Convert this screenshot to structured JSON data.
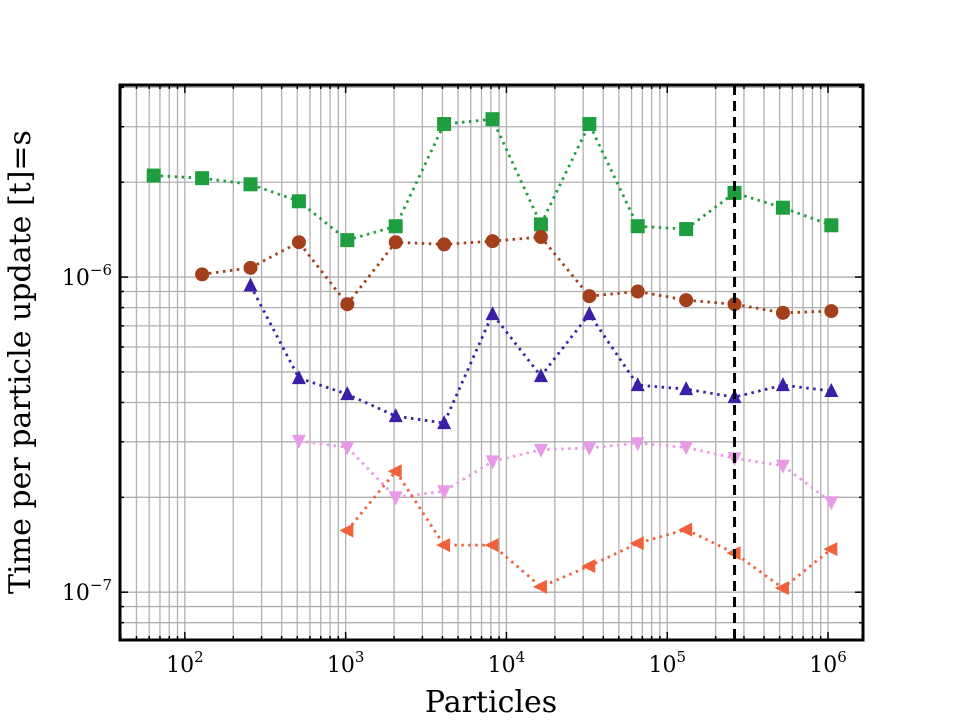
{
  "chart_data": {
    "type": "line",
    "title": "",
    "xlabel": "Particles",
    "ylabel": "Time per particle update [t]=s",
    "xscale": "log",
    "yscale": "log",
    "xlim": [
      39.5,
      1650000
    ],
    "ylim": [
      7.05e-08,
      4.07e-06
    ],
    "grid": true,
    "x_ticks": [
      {
        "value": 100,
        "base": "10",
        "exp": "2"
      },
      {
        "value": 1000,
        "base": "10",
        "exp": "3"
      },
      {
        "value": 10000,
        "base": "10",
        "exp": "4"
      },
      {
        "value": 100000,
        "base": "10",
        "exp": "5"
      },
      {
        "value": 1000000,
        "base": "10",
        "exp": "6"
      }
    ],
    "y_ticks": [
      {
        "value": 1e-06,
        "base": "10",
        "exp": "−6"
      },
      {
        "value": 1e-07,
        "base": "10",
        "exp": "−7"
      }
    ],
    "vline": 262144,
    "series": [
      {
        "name": "green-squares",
        "color": "#1f9e3f",
        "marker": "square",
        "x": [
          64,
          128,
          256,
          512,
          1024,
          2048,
          4096,
          8192,
          16384,
          32768,
          65536,
          131072,
          262144,
          524288,
          1048576
        ],
        "y": [
          2.1e-06,
          2.06e-06,
          1.97e-06,
          1.74e-06,
          1.31e-06,
          1.45e-06,
          3.06e-06,
          3.17e-06,
          1.47e-06,
          3.06e-06,
          1.45e-06,
          1.42e-06,
          1.85e-06,
          1.66e-06,
          1.46e-06
        ]
      },
      {
        "name": "brown-circles",
        "color": "#a3401c",
        "marker": "circle",
        "x": [
          128,
          256,
          512,
          1024,
          2048,
          4096,
          8192,
          16384,
          32768,
          65536,
          131072,
          262144,
          524288,
          1048576
        ],
        "y": [
          1.02e-06,
          1.07e-06,
          1.29e-06,
          8.2e-07,
          1.29e-06,
          1.27e-06,
          1.3e-06,
          1.34e-06,
          8.7e-07,
          9e-07,
          8.45e-07,
          8.2e-07,
          7.7e-07,
          7.8e-07
        ]
      },
      {
        "name": "blue-triangles-up",
        "color": "#3b1fa6",
        "marker": "triangle-up",
        "x": [
          256,
          512,
          1024,
          2048,
          4096,
          8192,
          16384,
          32768,
          65536,
          131072,
          262144,
          524288,
          1048576
        ],
        "y": [
          9.4e-07,
          4.78e-07,
          4.25e-07,
          3.62e-07,
          3.44e-07,
          7.63e-07,
          4.85e-07,
          7.63e-07,
          4.54e-07,
          4.41e-07,
          4.16e-07,
          4.54e-07,
          4.35e-07
        ]
      },
      {
        "name": "pink-triangles-down",
        "color": "#e99ae6",
        "marker": "triangle-down",
        "x": [
          512,
          1024,
          2048,
          4096,
          8192,
          16384,
          32768,
          65536,
          131072,
          262144,
          524288,
          1048576
        ],
        "y": [
          3.02e-07,
          2.88e-07,
          2e-07,
          2.09e-07,
          2.6e-07,
          2.83e-07,
          2.87e-07,
          2.97e-07,
          2.88e-07,
          2.66e-07,
          2.52e-07,
          1.93e-07
        ]
      },
      {
        "name": "orange-triangles-left",
        "color": "#f0613a",
        "marker": "triangle-left",
        "x": [
          1024,
          2048,
          4096,
          8192,
          16384,
          32768,
          65536,
          131072,
          262144,
          524288,
          1048576
        ],
        "y": [
          1.57e-07,
          2.42e-07,
          1.41e-07,
          1.41e-07,
          1.04e-07,
          1.21e-07,
          1.43e-07,
          1.58e-07,
          1.33e-07,
          1.03e-07,
          1.37e-07
        ]
      }
    ]
  }
}
